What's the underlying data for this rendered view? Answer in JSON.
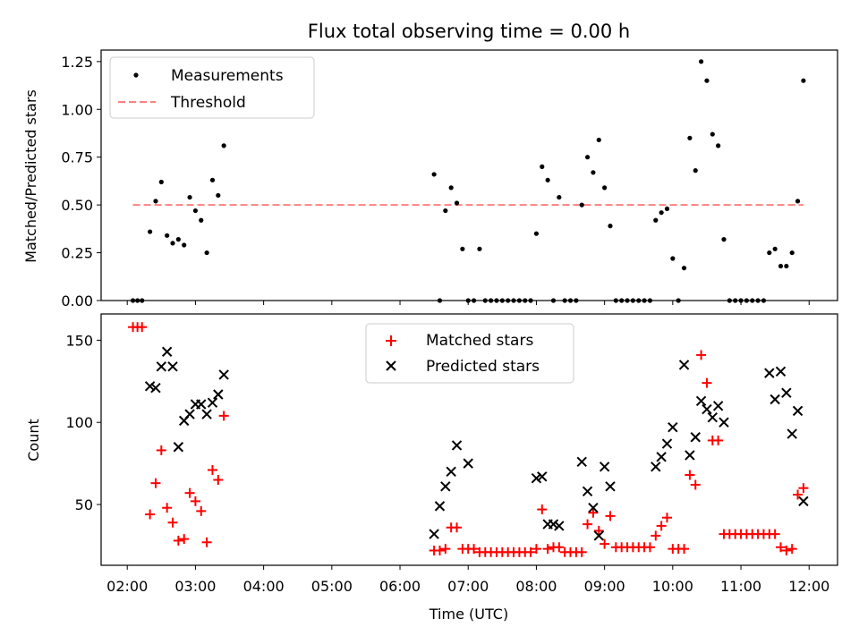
{
  "chart_data": [
    {
      "type": "scatter",
      "title": "Flux total observing time = 0.00 h",
      "xlabel": "",
      "ylabel": "Matched/Predicted stars",
      "xlim": [
        "01:37",
        "12:25"
      ],
      "ylim": [
        0,
        1.31
      ],
      "yticks": [
        "0.00",
        "0.25",
        "0.50",
        "0.75",
        "1.00",
        "1.25"
      ],
      "xticks": [
        "02:00",
        "03:00",
        "04:00",
        "05:00",
        "06:00",
        "07:00",
        "08:00",
        "09:00",
        "10:00",
        "11:00",
        "12:00"
      ],
      "grid": false,
      "legend_position": "top-left",
      "series": [
        {
          "name": "Measurements",
          "marker": "dot",
          "color": "#000000",
          "points": [
            [
              "02:05",
              0
            ],
            [
              "02:09",
              0
            ],
            [
              "02:13",
              0
            ],
            [
              "02:20",
              0.36
            ],
            [
              "02:25",
              0.52
            ],
            [
              "02:30",
              0.62
            ],
            [
              "02:35",
              0.34
            ],
            [
              "02:40",
              0.3
            ],
            [
              "02:45",
              0.32
            ],
            [
              "02:50",
              0.29
            ],
            [
              "02:55",
              0.54
            ],
            [
              "03:00",
              0.47
            ],
            [
              "03:05",
              0.42
            ],
            [
              "03:10",
              0.25
            ],
            [
              "03:15",
              0.63
            ],
            [
              "03:20",
              0.55
            ],
            [
              "03:25",
              0.81
            ],
            [
              "06:30",
              0.66
            ],
            [
              "06:35",
              0
            ],
            [
              "06:40",
              0.47
            ],
            [
              "06:45",
              0.59
            ],
            [
              "06:50",
              0.51
            ],
            [
              "06:55",
              0.27
            ],
            [
              "07:00",
              0
            ],
            [
              "07:05",
              0
            ],
            [
              "07:10",
              0.27
            ],
            [
              "07:15",
              0
            ],
            [
              "07:20",
              0
            ],
            [
              "07:25",
              0
            ],
            [
              "07:30",
              0
            ],
            [
              "07:35",
              0
            ],
            [
              "07:40",
              0
            ],
            [
              "07:45",
              0
            ],
            [
              "07:50",
              0
            ],
            [
              "07:55",
              0
            ],
            [
              "08:00",
              0.35
            ],
            [
              "08:05",
              0.7
            ],
            [
              "08:10",
              0.63
            ],
            [
              "08:15",
              0
            ],
            [
              "08:20",
              0.54
            ],
            [
              "08:25",
              0
            ],
            [
              "08:30",
              0
            ],
            [
              "08:35",
              0
            ],
            [
              "08:40",
              0.5
            ],
            [
              "08:45",
              0.75
            ],
            [
              "08:50",
              0.67
            ],
            [
              "08:55",
              0.84
            ],
            [
              "09:00",
              0.59
            ],
            [
              "09:05",
              0.39
            ],
            [
              "09:10",
              0
            ],
            [
              "09:15",
              0
            ],
            [
              "09:20",
              0
            ],
            [
              "09:25",
              0
            ],
            [
              "09:30",
              0
            ],
            [
              "09:35",
              0
            ],
            [
              "09:40",
              0
            ],
            [
              "09:45",
              0.42
            ],
            [
              "09:50",
              0.46
            ],
            [
              "09:55",
              0.48
            ],
            [
              "10:00",
              0.22
            ],
            [
              "10:05",
              0
            ],
            [
              "10:10",
              0.17
            ],
            [
              "10:15",
              0.85
            ],
            [
              "10:20",
              0.68
            ],
            [
              "10:25",
              1.25
            ],
            [
              "10:30",
              1.15
            ],
            [
              "10:35",
              0.87
            ],
            [
              "10:40",
              0.81
            ],
            [
              "10:45",
              0.32
            ],
            [
              "10:50",
              0
            ],
            [
              "10:55",
              0
            ],
            [
              "11:00",
              0
            ],
            [
              "11:05",
              0
            ],
            [
              "11:10",
              0
            ],
            [
              "11:15",
              0
            ],
            [
              "11:20",
              0
            ],
            [
              "11:25",
              0.25
            ],
            [
              "11:30",
              0.27
            ],
            [
              "11:35",
              0.18
            ],
            [
              "11:40",
              0.18
            ],
            [
              "11:45",
              0.25
            ],
            [
              "11:50",
              0.52
            ],
            [
              "11:55",
              1.15
            ]
          ]
        },
        {
          "name": "Threshold",
          "style": "dashed",
          "color": "#ff8080",
          "points": [
            [
              "02:05",
              0.5
            ],
            [
              "11:55",
              0.5
            ]
          ]
        }
      ]
    },
    {
      "type": "scatter",
      "title": "",
      "xlabel": "Time (UTC)",
      "ylabel": "Count",
      "xlim": [
        "01:37",
        "12:25"
      ],
      "ylim": [
        13,
        166
      ],
      "yticks": [
        "50",
        "100",
        "150"
      ],
      "xticks": [
        "02:00",
        "03:00",
        "04:00",
        "05:00",
        "06:00",
        "07:00",
        "08:00",
        "09:00",
        "10:00",
        "11:00",
        "12:00"
      ],
      "grid": false,
      "legend_position": "top-center",
      "series": [
        {
          "name": "Matched stars",
          "marker": "plus",
          "color": "#ff0000",
          "points": [
            [
              "02:05",
              158
            ],
            [
              "02:09",
              158
            ],
            [
              "02:13",
              158
            ],
            [
              "02:20",
              44
            ],
            [
              "02:25",
              63
            ],
            [
              "02:30",
              83
            ],
            [
              "02:35",
              48
            ],
            [
              "02:40",
              39
            ],
            [
              "02:45",
              28
            ],
            [
              "02:50",
              29
            ],
            [
              "02:55",
              57
            ],
            [
              "03:00",
              52
            ],
            [
              "03:05",
              46
            ],
            [
              "03:10",
              27
            ],
            [
              "03:15",
              71
            ],
            [
              "03:20",
              65
            ],
            [
              "03:25",
              104
            ],
            [
              "06:30",
              22
            ],
            [
              "06:35",
              22
            ],
            [
              "06:40",
              23
            ],
            [
              "06:45",
              36
            ],
            [
              "06:50",
              36
            ],
            [
              "06:55",
              23
            ],
            [
              "07:00",
              23
            ],
            [
              "07:05",
              23
            ],
            [
              "07:10",
              21
            ],
            [
              "07:15",
              21
            ],
            [
              "07:20",
              21
            ],
            [
              "07:25",
              21
            ],
            [
              "07:30",
              21
            ],
            [
              "07:35",
              21
            ],
            [
              "07:40",
              21
            ],
            [
              "07:45",
              21
            ],
            [
              "07:50",
              21
            ],
            [
              "07:55",
              21
            ],
            [
              "08:00",
              23
            ],
            [
              "08:05",
              47
            ],
            [
              "08:10",
              23
            ],
            [
              "08:15",
              24
            ],
            [
              "08:20",
              24
            ],
            [
              "08:25",
              21
            ],
            [
              "08:30",
              21
            ],
            [
              "08:35",
              21
            ],
            [
              "08:40",
              21
            ],
            [
              "08:45",
              38
            ],
            [
              "08:50",
              45
            ],
            [
              "08:55",
              34
            ],
            [
              "09:00",
              26
            ],
            [
              "09:05",
              43
            ],
            [
              "09:10",
              24
            ],
            [
              "09:15",
              24
            ],
            [
              "09:20",
              24
            ],
            [
              "09:25",
              24
            ],
            [
              "09:30",
              24
            ],
            [
              "09:35",
              24
            ],
            [
              "09:40",
              24
            ],
            [
              "09:45",
              31
            ],
            [
              "09:50",
              37
            ],
            [
              "09:55",
              42
            ],
            [
              "10:00",
              23
            ],
            [
              "10:05",
              23
            ],
            [
              "10:10",
              23
            ],
            [
              "10:15",
              68
            ],
            [
              "10:20",
              62
            ],
            [
              "10:25",
              141
            ],
            [
              "10:30",
              124
            ],
            [
              "10:35",
              89
            ],
            [
              "10:40",
              89
            ],
            [
              "10:45",
              32
            ],
            [
              "10:50",
              32
            ],
            [
              "10:55",
              32
            ],
            [
              "11:00",
              32
            ],
            [
              "11:05",
              32
            ],
            [
              "11:10",
              32
            ],
            [
              "11:15",
              32
            ],
            [
              "11:20",
              32
            ],
            [
              "11:25",
              32
            ],
            [
              "11:30",
              32
            ],
            [
              "11:35",
              24
            ],
            [
              "11:40",
              22
            ],
            [
              "11:45",
              23
            ],
            [
              "11:50",
              56
            ],
            [
              "11:55",
              60
            ]
          ]
        },
        {
          "name": "Predicted stars",
          "marker": "x",
          "color": "#000000",
          "points": [
            [
              "02:20",
              122
            ],
            [
              "02:25",
              121
            ],
            [
              "02:30",
              134
            ],
            [
              "02:35",
              143
            ],
            [
              "02:40",
              134
            ],
            [
              "02:45",
              85
            ],
            [
              "02:50",
              101
            ],
            [
              "02:55",
              105
            ],
            [
              "03:00",
              111
            ],
            [
              "03:05",
              111
            ],
            [
              "03:10",
              105
            ],
            [
              "03:15",
              112
            ],
            [
              "03:20",
              117
            ],
            [
              "03:25",
              129
            ],
            [
              "06:30",
              32
            ],
            [
              "06:35",
              49
            ],
            [
              "06:40",
              61
            ],
            [
              "06:45",
              70
            ],
            [
              "06:50",
              86
            ],
            [
              "07:00",
              75
            ],
            [
              "08:00",
              66
            ],
            [
              "08:05",
              67
            ],
            [
              "08:10",
              38
            ],
            [
              "08:15",
              38
            ],
            [
              "08:20",
              37
            ],
            [
              "08:40",
              76
            ],
            [
              "08:45",
              58
            ],
            [
              "08:50",
              48
            ],
            [
              "08:55",
              31
            ],
            [
              "09:00",
              73
            ],
            [
              "09:05",
              61
            ],
            [
              "09:45",
              73
            ],
            [
              "09:50",
              79
            ],
            [
              "09:55",
              87
            ],
            [
              "10:00",
              97
            ],
            [
              "10:10",
              135
            ],
            [
              "10:15",
              80
            ],
            [
              "10:20",
              91
            ],
            [
              "10:25",
              113
            ],
            [
              "10:30",
              108
            ],
            [
              "10:35",
              103
            ],
            [
              "10:40",
              110
            ],
            [
              "10:45",
              100
            ],
            [
              "11:25",
              130
            ],
            [
              "11:30",
              114
            ],
            [
              "11:35",
              131
            ],
            [
              "11:40",
              118
            ],
            [
              "11:45",
              93
            ],
            [
              "11:50",
              107
            ],
            [
              "11:55",
              52
            ]
          ]
        }
      ]
    }
  ]
}
